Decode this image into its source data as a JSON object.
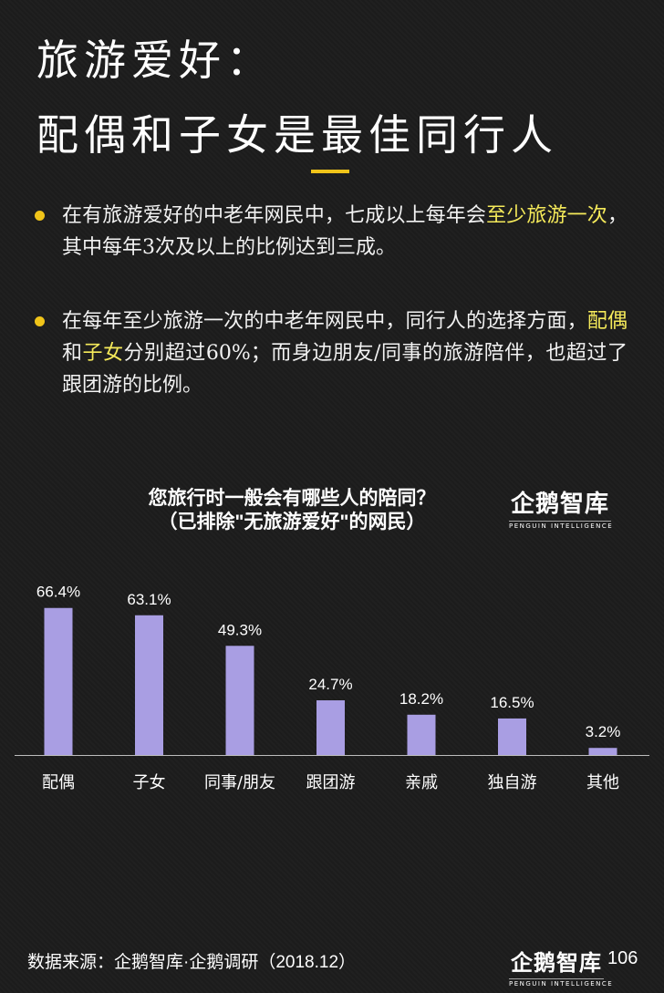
{
  "header": {
    "title_line1": "旅游爱好：",
    "title_line2": "配偶和子女是最佳同行人"
  },
  "bullets": [
    {
      "segments": [
        {
          "text": "在有旅游爱好的中老年网民中，七成以上每年会",
          "highlight": false
        },
        {
          "text": "至少旅游一次",
          "highlight": true
        },
        {
          "text": "，其中每年3次及以上的比例达到三成。",
          "highlight": false
        }
      ]
    },
    {
      "segments": [
        {
          "text": "在每年至少旅游一次的中老年网民中，同行人的选择方面，",
          "highlight": false
        },
        {
          "text": "配偶",
          "highlight": true
        },
        {
          "text": "和",
          "highlight": false
        },
        {
          "text": "子女",
          "highlight": true
        },
        {
          "text": "分别超过60%；而身边朋友/同事的旅游陪伴，也超过了跟团游的比例。",
          "highlight": false
        }
      ]
    }
  ],
  "logo": {
    "main": "企鹅智库",
    "sub": "PENGUIN INTELLIGENCE"
  },
  "chart_data": {
    "type": "bar",
    "title": "您旅行时一般会有哪些人的陪同？",
    "subtitle": "（已排除\"无旅游爱好\"的网民）",
    "categories": [
      "配偶",
      "子女",
      "同事/朋友",
      "跟团游",
      "亲戚",
      "独自游",
      "其他"
    ],
    "values": [
      66.4,
      63.1,
      49.3,
      24.7,
      18.2,
      16.5,
      3.2
    ],
    "value_labels": [
      "66.4%",
      "63.1%",
      "49.3%",
      "24.7%",
      "18.2%",
      "16.5%",
      "3.2%"
    ],
    "xlabel": "",
    "ylabel": "",
    "ylim": [
      0,
      70
    ],
    "grid": false,
    "bar_color": "#a99ee3"
  },
  "footer": {
    "source": "数据来源：企鹅智库·企鹅调研（2018.12）",
    "page_number": "106"
  },
  "colors": {
    "accent": "#f0c419",
    "highlight": "#f5ea5a",
    "background": "#1d1d1d"
  }
}
